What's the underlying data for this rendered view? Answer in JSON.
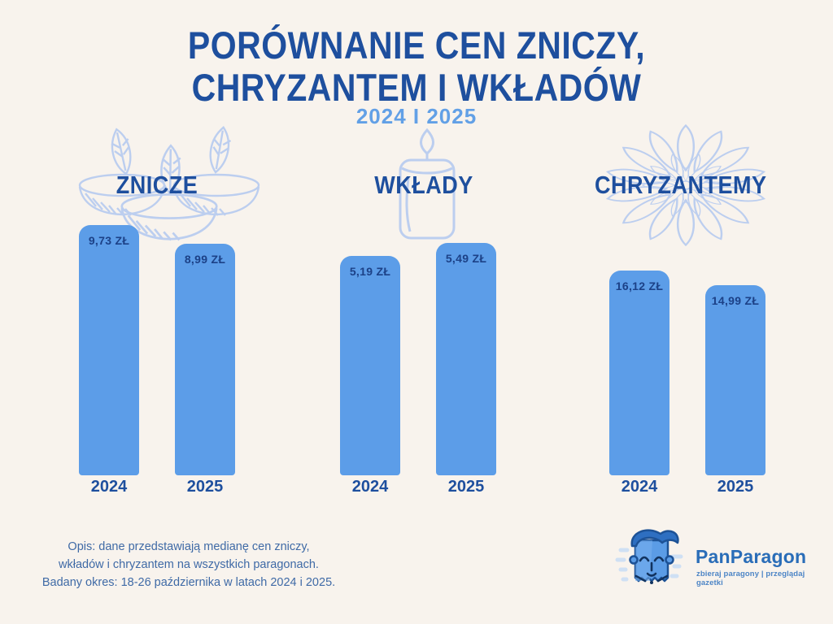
{
  "header": {
    "title_line1": "PORÓWNANIE CEN ZNICZY,",
    "title_line2": "CHRYZANTEM I WKŁADÓW",
    "subtitle": "2024 I 2025"
  },
  "chart_data": {
    "type": "bar",
    "title": "PORÓWNANIE CEN ZNICZY, CHRYZANTEM I WKŁADÓW",
    "subtitle": "2024 I 2025",
    "unit": "zł",
    "grid": false,
    "legend": "none",
    "scale_note": "each product group is drawn on its own independent bar scale; values labeled directly on bars",
    "groups": [
      {
        "name": "ZNICZE",
        "icon": "grave-candles-line-art",
        "categories": [
          "2024",
          "2025"
        ],
        "values": [
          9.73,
          8.99
        ],
        "value_labels": [
          "9,73 ZŁ",
          "8,99 ZŁ"
        ]
      },
      {
        "name": "WKŁADY",
        "icon": "candle-insert-line-art",
        "categories": [
          "2024",
          "2025"
        ],
        "values": [
          5.19,
          5.49
        ],
        "value_labels": [
          "5,19 ZŁ",
          "5,49 ZŁ"
        ]
      },
      {
        "name": "CHRYZANTEMY",
        "icon": "chrysanthemum-line-art",
        "categories": [
          "2024",
          "2025"
        ],
        "values": [
          16.12,
          14.99
        ],
        "value_labels": [
          "16,12 ZŁ",
          "14,99 ZŁ"
        ]
      }
    ]
  },
  "footer": {
    "note_lines": [
      "Opis: dane przedstawiają medianę cen zniczy,",
      "wkładów i chryzantem na wszystkich paragonach.",
      "Badany okres: 18-26 października w latach 2024 i 2025."
    ],
    "logo": {
      "name": "PanParagon",
      "tagline": "zbieraj paragony | przeglądaj gazetki"
    }
  },
  "colors": {
    "background": "#f8f3ed",
    "title_blue": "#1e4f9e",
    "subtitle_blue": "#62a0e6",
    "bar_blue": "#5c9de8",
    "label_blue": "#1c4187",
    "illustration_blue": "#bcceef",
    "footer_text": "#3f6aa6",
    "logo_blue": "#2a6db8"
  }
}
